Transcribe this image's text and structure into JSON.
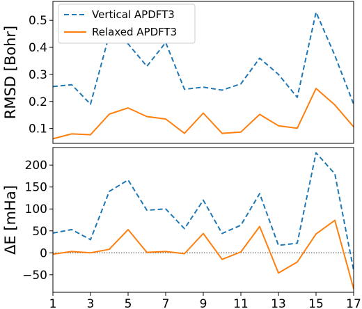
{
  "chart_data": [
    {
      "type": "line",
      "ylabel": "RMSD [Bohr]",
      "xlabel": "",
      "x": [
        1,
        2,
        3,
        4,
        5,
        6,
        7,
        8,
        9,
        10,
        11,
        12,
        13,
        14,
        15,
        16,
        17
      ],
      "xlim": [
        1,
        17
      ],
      "ylim": [
        0.045,
        0.57
      ],
      "yticks": [
        0.1,
        0.2,
        0.3,
        0.4,
        0.5
      ],
      "ytick_labels": [
        "0.1",
        "0.2",
        "0.3",
        "0.4",
        "0.5"
      ],
      "legend_position": "top-left",
      "series": [
        {
          "name": "Vertical APDFT3",
          "color": "#1f77b4",
          "style": "dashed",
          "values": [
            0.255,
            0.262,
            0.19,
            0.447,
            0.413,
            0.33,
            0.418,
            0.245,
            0.253,
            0.242,
            0.265,
            0.36,
            0.3,
            0.215,
            0.53,
            0.37,
            0.19
          ]
        },
        {
          "name": "Relaxed APDFT3",
          "color": "#ff7f0e",
          "style": "solid",
          "values": [
            0.062,
            0.08,
            0.077,
            0.153,
            0.176,
            0.144,
            0.135,
            0.082,
            0.157,
            0.082,
            0.087,
            0.152,
            0.11,
            0.101,
            0.248,
            0.187,
            0.106
          ]
        }
      ]
    },
    {
      "type": "line",
      "ylabel": "ΔE [mHa]",
      "xlabel": "",
      "x": [
        1,
        2,
        3,
        4,
        5,
        6,
        7,
        8,
        9,
        10,
        11,
        12,
        13,
        14,
        15,
        16,
        17
      ],
      "xlim": [
        1,
        17
      ],
      "ylim": [
        -90,
        240
      ],
      "yticks": [
        -50,
        0,
        50,
        100,
        150,
        200
      ],
      "ytick_labels": [
        "−50",
        "0",
        "50",
        "100",
        "150",
        "200"
      ],
      "xticks": [
        1,
        3,
        5,
        7,
        9,
        11,
        13,
        15,
        17
      ],
      "xtick_labels": [
        "1",
        "3",
        "5",
        "7",
        "9",
        "11",
        "13",
        "15",
        "17"
      ],
      "reference_line": {
        "y": 0,
        "style": "dotted",
        "color": "#333333"
      },
      "series": [
        {
          "name": "Vertical APDFT3",
          "color": "#1f77b4",
          "style": "dashed",
          "values": [
            45,
            53,
            30,
            140,
            166,
            97,
            100,
            55,
            120,
            44,
            63,
            135,
            17,
            22,
            228,
            180,
            -40
          ]
        },
        {
          "name": "Relaxed APDFT3",
          "color": "#ff7f0e",
          "style": "solid",
          "values": [
            -3,
            3,
            0,
            8,
            53,
            1,
            3,
            -2,
            44,
            -15,
            2,
            60,
            -46,
            -21,
            43,
            74,
            -82
          ]
        }
      ]
    }
  ]
}
